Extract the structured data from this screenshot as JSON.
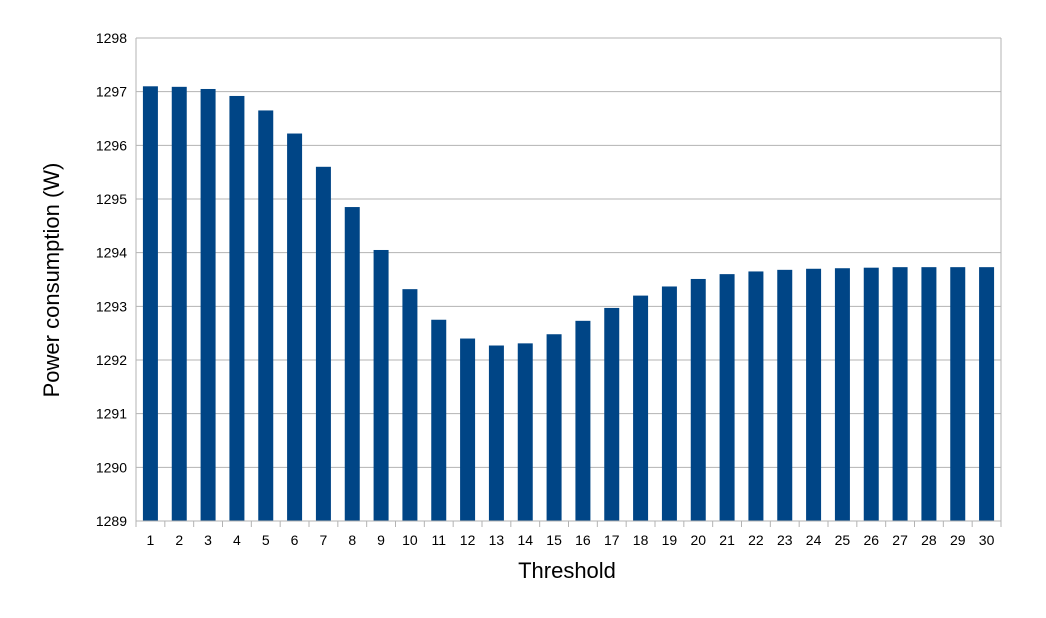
{
  "chart_data": {
    "type": "bar",
    "title": "",
    "xlabel": "Threshold",
    "ylabel": "Power consumption (W)",
    "ylim": [
      1289,
      1298
    ],
    "yticks": [
      1289,
      1290,
      1291,
      1292,
      1293,
      1294,
      1295,
      1296,
      1297,
      1298
    ],
    "grid": true,
    "legend": "none",
    "bar_color": "#004586",
    "grid_color": "#b3b3b3",
    "categories": [
      "1",
      "2",
      "3",
      "4",
      "5",
      "6",
      "7",
      "8",
      "9",
      "10",
      "11",
      "12",
      "13",
      "14",
      "15",
      "16",
      "17",
      "18",
      "19",
      "20",
      "21",
      "22",
      "23",
      "24",
      "25",
      "26",
      "27",
      "28",
      "29",
      "30"
    ],
    "values": [
      1297.1,
      1297.09,
      1297.05,
      1296.92,
      1296.65,
      1296.22,
      1295.6,
      1294.85,
      1294.05,
      1293.32,
      1292.75,
      1292.4,
      1292.27,
      1292.31,
      1292.48,
      1292.73,
      1292.97,
      1293.2,
      1293.37,
      1293.51,
      1293.6,
      1293.65,
      1293.68,
      1293.7,
      1293.71,
      1293.72,
      1293.73,
      1293.73,
      1293.73,
      1293.73
    ]
  }
}
